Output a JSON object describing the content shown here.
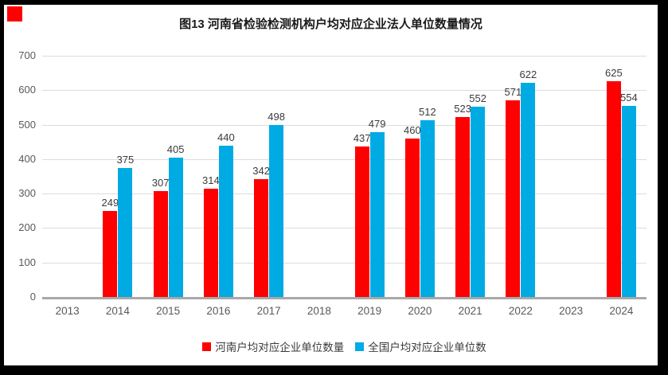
{
  "marker": {
    "color": "#fe0000"
  },
  "chart_data": {
    "type": "bar",
    "title": "图13  河南省检验检测机构户均对应企业法人单位数量情况",
    "categories": [
      "2013",
      "2014",
      "2015",
      "2016",
      "2017",
      "2018",
      "2019",
      "2020",
      "2021",
      "2022",
      "2023",
      "2024"
    ],
    "series": [
      {
        "name": "河南户均对应企业单位数量",
        "color": "#fe0000",
        "values": [
          null,
          249,
          307,
          314,
          342,
          null,
          437,
          460,
          523,
          571,
          null,
          625
        ]
      },
      {
        "name": "全国户均对应企业单位数",
        "color": "#00abe4",
        "values": [
          null,
          375,
          405,
          440,
          498,
          null,
          479,
          512,
          552,
          622,
          null,
          554
        ]
      }
    ],
    "ylim": [
      0,
      700
    ],
    "ytick_interval": 100,
    "yticks": [
      0,
      100,
      200,
      300,
      400,
      500,
      600,
      700
    ],
    "grid": "horizontal-only",
    "legend_position": "bottom",
    "bar_value_labels": true
  }
}
